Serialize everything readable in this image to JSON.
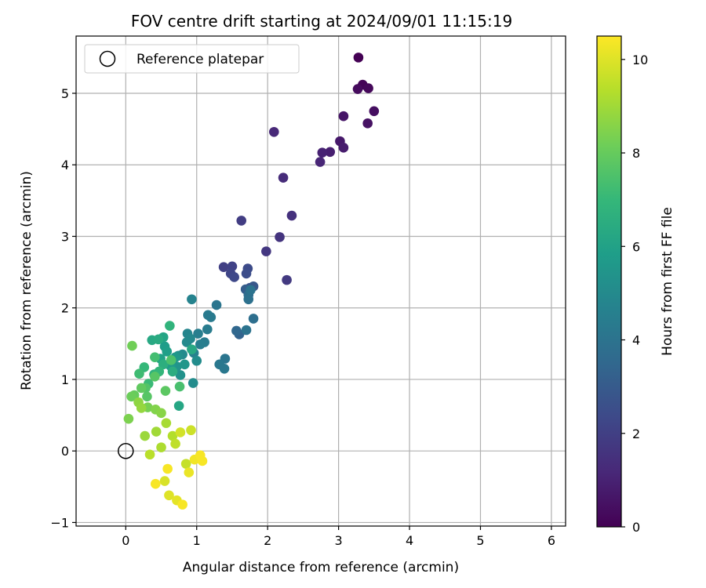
{
  "chart_data": {
    "type": "scatter",
    "title": "FOV centre drift starting at 2024/09/01 11:15:19",
    "xlabel": "Angular distance from reference (arcmin)",
    "ylabel": "Rotation from reference (arcmin)",
    "xlim": [
      -0.7,
      6.2
    ],
    "ylim": [
      -1.05,
      5.8
    ],
    "xticks": [
      0,
      1,
      2,
      3,
      4,
      5,
      6
    ],
    "xtick_labels": [
      "0",
      "1",
      "2",
      "3",
      "4",
      "5",
      "6"
    ],
    "yticks": [
      -1,
      0,
      1,
      2,
      3,
      4,
      5
    ],
    "ytick_labels": [
      "−1",
      "0",
      "1",
      "2",
      "3",
      "4",
      "5"
    ],
    "grid": true,
    "legend": {
      "placement": "upper-left",
      "label": "Reference platepar"
    },
    "reference_point": {
      "x": 0,
      "y": 0
    },
    "colorbar": {
      "label": "Hours from first FF file",
      "colormap": "viridis",
      "range": [
        0,
        10.5
      ],
      "ticks": [
        0,
        2,
        4,
        6,
        8,
        10
      ],
      "tick_labels": [
        "0",
        "2",
        "4",
        "6",
        "8",
        "10"
      ],
      "colors": [
        "#440154",
        "#482878",
        "#3e4989",
        "#31688e",
        "#26828e",
        "#1f9e89",
        "#35b779",
        "#6ece58",
        "#b5de2b",
        "#fde725"
      ]
    },
    "series": [
      {
        "hours_from_first_ff": [
          0.0,
          0.1,
          0.2,
          0.3,
          0.4,
          0.5,
          0.6,
          0.7,
          0.8,
          0.9,
          1.0,
          1.1,
          1.2,
          1.3,
          1.5,
          1.6,
          1.7,
          1.8,
          1.9,
          2.0,
          2.1,
          2.2,
          2.3,
          2.4,
          2.5,
          2.7,
          2.9,
          3.1,
          3.3,
          3.5,
          3.7,
          3.8,
          3.9,
          4.0,
          4.0,
          4.1,
          4.1,
          4.2,
          4.2,
          4.3,
          4.3,
          4.4,
          4.4,
          4.5,
          4.5,
          4.6,
          4.7,
          4.8,
          4.9,
          5.0,
          5.0,
          5.1,
          5.1,
          5.2,
          5.3,
          5.4,
          5.5,
          5.6,
          5.7,
          5.8,
          5.9,
          6.0,
          6.1,
          6.2,
          6.3,
          6.3,
          6.4,
          6.5,
          6.6,
          6.7,
          6.8,
          6.9,
          7.0,
          7.1,
          7.2,
          7.3,
          7.4,
          7.5,
          7.6,
          7.7,
          7.7,
          7.8,
          7.9,
          8.0,
          8.1,
          8.2,
          8.3,
          8.4,
          8.5,
          8.6,
          8.7,
          8.8,
          8.9,
          9.0,
          9.1,
          9.2,
          9.3,
          9.4,
          9.5,
          9.6,
          9.7,
          9.8,
          9.9,
          10.0,
          10.1,
          10.2,
          10.3,
          10.4,
          10.4,
          10.4,
          10.4,
          10.4
        ],
        "x": [
          3.28,
          3.34,
          3.42,
          3.27,
          3.5,
          3.41,
          3.07,
          3.02,
          3.07,
          2.88,
          2.77,
          2.74,
          2.09,
          2.22,
          2.34,
          2.17,
          1.98,
          2.27,
          1.63,
          1.38,
          1.5,
          1.48,
          1.53,
          1.72,
          1.7,
          1.75,
          1.8,
          1.69,
          1.6,
          1.56,
          1.73,
          1.8,
          1.73,
          1.7,
          1.76,
          1.28,
          1.4,
          1.32,
          1.39,
          1.16,
          1.2,
          1.15,
          1.11,
          1.05,
          1.02,
          0.96,
          0.93,
          0.87,
          0.91,
          0.86,
          0.8,
          0.95,
          1.0,
          0.74,
          0.77,
          0.72,
          0.83,
          0.7,
          0.63,
          0.55,
          0.58,
          0.49,
          0.53,
          0.75,
          0.93,
          0.37,
          0.46,
          0.66,
          0.53,
          0.4,
          0.62,
          0.47,
          0.26,
          0.32,
          0.19,
          0.41,
          0.76,
          0.64,
          0.28,
          0.41,
          0.3,
          0.56,
          0.22,
          0.12,
          0.08,
          0.09,
          0.31,
          0.04,
          0.42,
          0.5,
          0.18,
          0.22,
          0.27,
          0.43,
          0.57,
          0.5,
          0.66,
          0.34,
          0.7,
          0.85,
          0.92,
          0.77,
          0.55,
          0.61,
          0.72,
          0.89,
          0.97,
          1.05,
          1.08,
          0.42,
          0.59,
          0.8
        ],
        "y": [
          5.5,
          5.12,
          5.07,
          5.06,
          4.75,
          4.58,
          4.68,
          4.33,
          4.24,
          4.18,
          4.17,
          4.04,
          4.46,
          3.82,
          3.29,
          2.99,
          2.79,
          2.39,
          3.22,
          2.57,
          2.58,
          2.48,
          2.43,
          2.55,
          2.48,
          2.28,
          2.3,
          2.26,
          1.63,
          1.68,
          2.18,
          1.85,
          2.12,
          1.69,
          2.25,
          2.04,
          1.29,
          1.21,
          1.15,
          1.9,
          1.87,
          1.7,
          1.52,
          1.49,
          1.64,
          1.37,
          2.12,
          1.64,
          1.57,
          1.52,
          1.35,
          0.95,
          1.26,
          1.33,
          1.06,
          1.18,
          1.21,
          1.31,
          1.19,
          1.46,
          1.39,
          1.29,
          1.59,
          0.63,
          1.42,
          1.55,
          1.56,
          1.11,
          1.21,
          1.07,
          1.75,
          1.11,
          1.17,
          0.94,
          1.08,
          1.31,
          0.9,
          1.27,
          0.88,
          1.04,
          0.76,
          0.84,
          0.88,
          0.78,
          0.76,
          1.47,
          0.61,
          0.45,
          0.58,
          0.53,
          0.68,
          0.6,
          0.21,
          0.27,
          0.39,
          0.05,
          0.21,
          -0.05,
          0.1,
          -0.18,
          0.29,
          0.26,
          -0.42,
          -0.62,
          -0.69,
          -0.3,
          -0.12,
          -0.06,
          -0.14,
          -0.46,
          -0.25,
          -0.75
        ]
      }
    ]
  }
}
